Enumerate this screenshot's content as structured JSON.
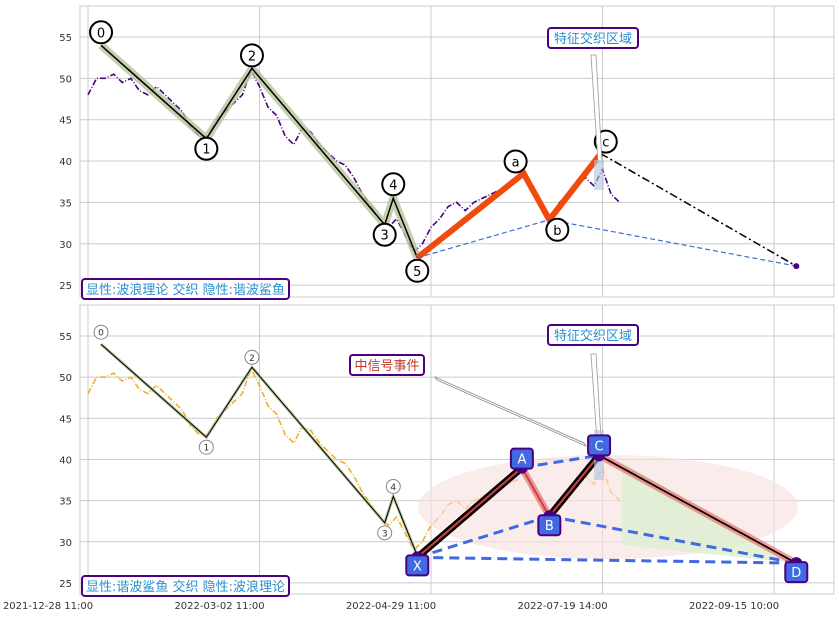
{
  "chart_data": [
    {
      "type": "line",
      "panel": "top",
      "xaxis_ticks": [
        {
          "index": 0,
          "label": "2021-12-28 11:00"
        },
        {
          "index": 100,
          "label": "2022-03-02 11:00"
        },
        {
          "index": 200,
          "label": "2022-04-29 11:00"
        },
        {
          "index": 300,
          "label": "2022-07-19 14:00"
        },
        {
          "index": 400,
          "label": "2022-09-15 10:00"
        }
      ],
      "yticks": [
        25,
        30,
        35,
        40,
        45,
        50,
        55
      ],
      "ylim": [
        23.6,
        58.8
      ],
      "grid": true,
      "price_series": {
        "color": "#4b0082",
        "style": "dash-dot",
        "x_step": 5,
        "values": [
          48,
          50,
          50,
          50.5,
          49.5,
          50,
          48.5,
          48,
          49,
          48,
          47,
          46,
          44,
          43,
          43,
          45,
          46,
          47,
          48,
          51,
          49,
          46.5,
          45.5,
          43,
          42,
          44,
          43.5,
          42,
          41,
          40,
          39.5,
          38,
          36,
          34.5,
          33,
          32,
          33,
          31,
          29,
          30,
          32,
          33,
          34.5,
          35,
          34,
          35,
          35.5,
          36,
          36.5,
          37,
          37.5,
          38.5,
          36,
          34,
          33,
          35,
          36,
          37,
          38,
          37,
          39,
          36,
          35
        ]
      },
      "wave_points": [
        {
          "label": "0",
          "x": 7.6,
          "y": 54.0
        },
        {
          "label": "1",
          "x": 69,
          "y": 42.7
        },
        {
          "label": "2",
          "x": 95.6,
          "y": 51.2
        },
        {
          "label": "3",
          "x": 173,
          "y": 32.3
        },
        {
          "label": "4",
          "x": 178,
          "y": 35.5
        },
        {
          "label": "5",
          "x": 192,
          "y": 28.3
        },
        {
          "label": "a",
          "x": 254,
          "y": 38.5
        },
        {
          "label": "b",
          "x": 269,
          "y": 32.9
        },
        {
          "label": "c",
          "x": 299,
          "y": 40.9
        }
      ],
      "projection_point": {
        "x": 413,
        "y": 27.3
      },
      "colors": {
        "impulse": "#000000",
        "impulse_glow": "#b5c49a",
        "correction": "#f04a0c",
        "projection": "#000000",
        "dashed": "#3a6fd0"
      },
      "annotation": "特征交织区域",
      "legend_box": "显性:波浪理论 交织 隐性:谐波鲨鱼"
    },
    {
      "type": "line",
      "panel": "bottom",
      "xaxis_ticks": [
        {
          "index": 0,
          "label": "2021-12-28 11:00"
        },
        {
          "index": 100,
          "label": "2022-03-02 11:00"
        },
        {
          "index": 200,
          "label": "2022-04-29 11:00"
        },
        {
          "index": 300,
          "label": "2022-07-19 14:00"
        },
        {
          "index": 400,
          "label": "2022-09-15 10:00"
        }
      ],
      "yticks": [
        25,
        30,
        35,
        40,
        45,
        50,
        55
      ],
      "ylim": [
        23.7,
        58.8
      ],
      "grid": true,
      "price_series_color": "#f0b02a",
      "harmonic_points": [
        {
          "label": "X",
          "x": 192,
          "y": 28.1
        },
        {
          "label": "A",
          "x": 253,
          "y": 39.0
        },
        {
          "label": "B",
          "x": 269,
          "y": 33.1
        },
        {
          "label": "C",
          "x": 298,
          "y": 40.5
        },
        {
          "label": "D",
          "x": 413,
          "y": 27.4
        }
      ],
      "colors": {
        "harmonic_box": "#4169e1",
        "harmonic_border": "#4b0082",
        "leg": "#000000",
        "leg_glow": "#e06060",
        "dashed": "#4169e1",
        "zone": "#f9e0e0",
        "target": "#dcefd0"
      },
      "annotations": [
        "特征交织区域",
        "中信号事件"
      ],
      "legend_box": "显性:谐波鲨鱼 交织 隐性:波浪理论"
    }
  ]
}
